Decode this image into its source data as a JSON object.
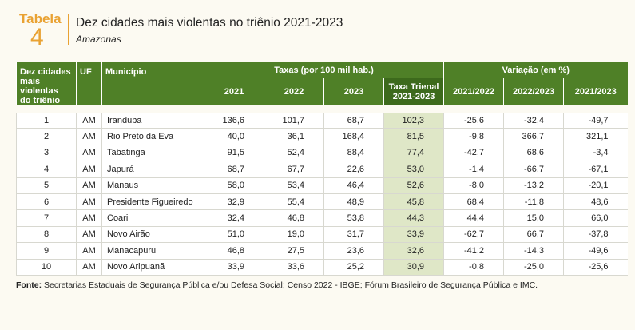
{
  "header": {
    "label": "Tabela",
    "number": "4",
    "title": "Dez cidades mais violentas no triênio 2021-2023",
    "subtitle": "Amazonas"
  },
  "table": {
    "head": {
      "rank": "Dez cidades\nmais violentas\ndo triênio",
      "uf": "UF",
      "city": "Município",
      "groups": [
        {
          "label": "Taxas (por 100 mil hab.)",
          "columns": [
            "2021",
            "2022",
            "2023",
            "Taxa Trienal\n2021-2023"
          ]
        },
        {
          "label": "Variação (em %)",
          "columns": [
            "2021/2022",
            "2022/2023",
            "2021/2023"
          ]
        }
      ]
    },
    "rows": [
      [
        "1",
        "AM",
        "Iranduba",
        "136,6",
        "101,7",
        "68,7",
        "102,3",
        "-25,6",
        "-32,4",
        "-49,7"
      ],
      [
        "2",
        "AM",
        "Rio Preto da Eva",
        "40,0",
        "36,1",
        "168,4",
        "81,5",
        "-9,8",
        "366,7",
        "321,1"
      ],
      [
        "3",
        "AM",
        "Tabatinga",
        "91,5",
        "52,4",
        "88,4",
        "77,4",
        "-42,7",
        "68,6",
        "-3,4"
      ],
      [
        "4",
        "AM",
        "Japurá",
        "68,7",
        "67,7",
        "22,6",
        "53,0",
        "-1,4",
        "-66,7",
        "-67,1"
      ],
      [
        "5",
        "AM",
        "Manaus",
        "58,0",
        "53,4",
        "46,4",
        "52,6",
        "-8,0",
        "-13,2",
        "-20,1"
      ],
      [
        "6",
        "AM",
        "Presidente Figueiredo",
        "32,9",
        "55,4",
        "48,9",
        "45,8",
        "68,4",
        "-11,8",
        "48,6"
      ],
      [
        "7",
        "AM",
        "Coari",
        "32,4",
        "46,8",
        "53,8",
        "44,3",
        "44,4",
        "15,0",
        "66,0"
      ],
      [
        "8",
        "AM",
        "Novo Airão",
        "51,0",
        "19,0",
        "31,7",
        "33,9",
        "-62,7",
        "66,7",
        "-37,8"
      ],
      [
        "9",
        "AM",
        "Manacapuru",
        "46,8",
        "27,5",
        "23,6",
        "32,6",
        "-41,2",
        "-14,3",
        "-49,6"
      ],
      [
        "10",
        "AM",
        "Novo Aripuanã",
        "33,9",
        "33,6",
        "25,2",
        "30,9",
        "-0,8",
        "-25,0",
        "-25,6"
      ]
    ]
  },
  "footnote": {
    "label": "Fonte:",
    "text": "Secretarias Estaduais de Segurança Pública e/ou Defesa Social; Censo 2022 - IBGE; Fórum Brasileiro de Segurança Pública e IMC."
  }
}
